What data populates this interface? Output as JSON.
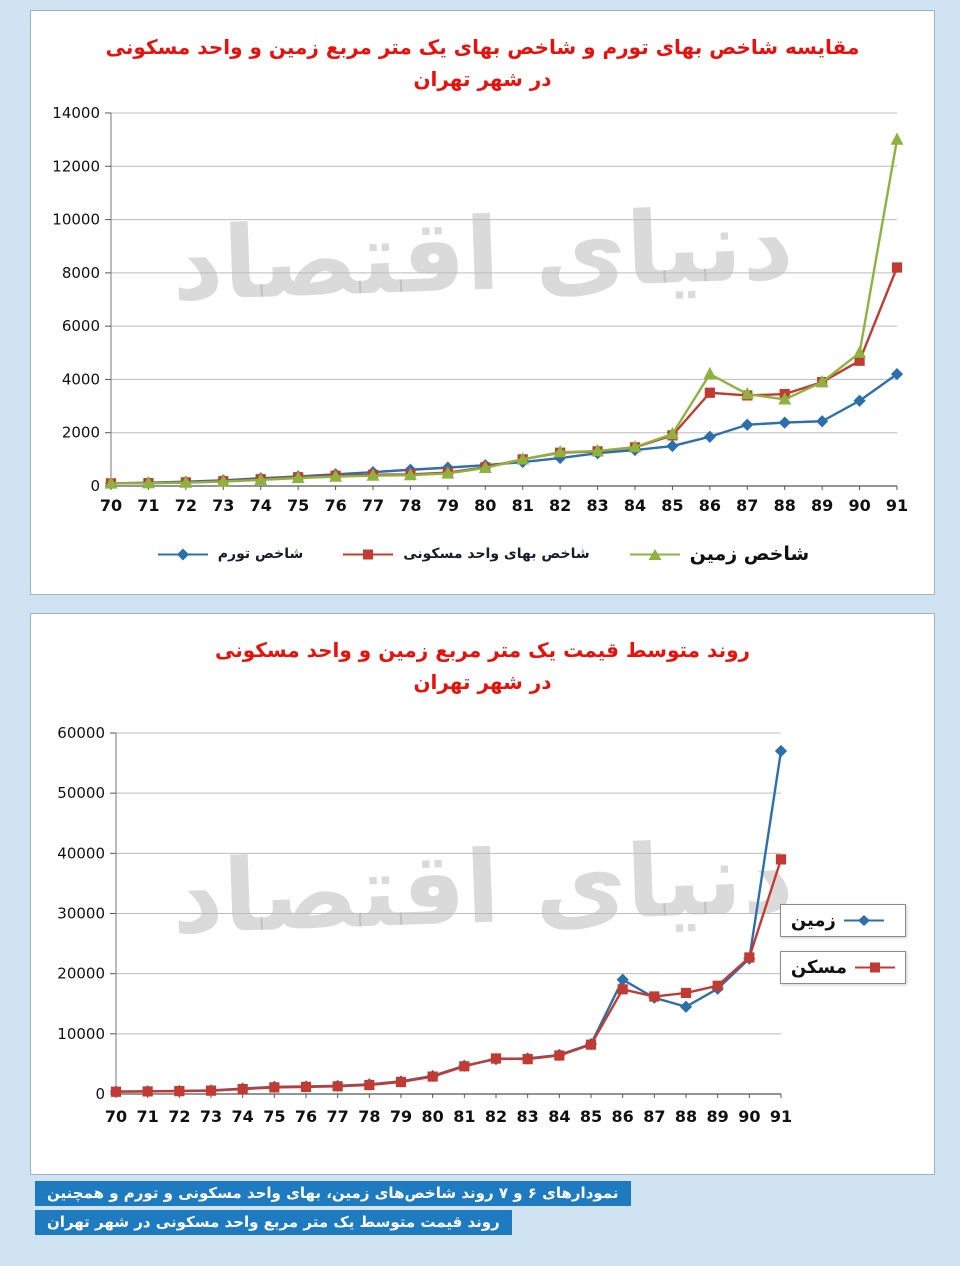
{
  "watermark_text": "دنیای اقتصاد",
  "caption": {
    "line1": "نمودارهای ۶ و ۷ روند شاخص‌های زمین، بهای واحد مسکونی و تورم و همچنین",
    "line2": "روند قیمت متوسط یک متر مربع واحد مسکونی در شهر تهران",
    "background": "#1e7bc0"
  },
  "chart_data": [
    {
      "type": "line",
      "title_line1": "مقایسه شاخص بهای تورم و شاخص بهای یک متر مربع زمین و واحد مسکونی",
      "title_line2": "در شهر تهران",
      "title_color": "#e8110b",
      "categories": [
        "70",
        "71",
        "72",
        "73",
        "74",
        "75",
        "76",
        "77",
        "78",
        "79",
        "80",
        "81",
        "82",
        "83",
        "84",
        "85",
        "86",
        "87",
        "88",
        "89",
        "90",
        "91"
      ],
      "ylim": [
        0,
        14000
      ],
      "yticks": [
        0,
        2000,
        4000,
        6000,
        8000,
        10000,
        12000,
        14000
      ],
      "grid": true,
      "legend_position": "bottom",
      "series": [
        {
          "name": "شاخص تورم",
          "color": "#2c6fad",
          "marker": "diamond",
          "values": [
            100,
            125,
            160,
            215,
            290,
            360,
            440,
            520,
            610,
            690,
            780,
            900,
            1050,
            1230,
            1350,
            1500,
            1850,
            2300,
            2380,
            2430,
            3200,
            4200
          ]
        },
        {
          "name": "شاخص بهای واحد مسکونی",
          "color": "#c23b33",
          "marker": "square",
          "values": [
            100,
            110,
            135,
            180,
            255,
            330,
            385,
            420,
            435,
            505,
            700,
            1000,
            1250,
            1300,
            1450,
            1900,
            3500,
            3400,
            3450,
            3900,
            4700,
            8200
          ]
        },
        {
          "name": "شاخص زمین",
          "color": "#8db33f",
          "marker": "triangle",
          "values": [
            95,
            105,
            125,
            165,
            230,
            300,
            350,
            390,
            405,
            470,
            680,
            1000,
            1270,
            1310,
            1460,
            1950,
            4200,
            3450,
            3250,
            3900,
            5000,
            13000
          ]
        }
      ]
    },
    {
      "type": "line",
      "title_line1": "روند متوسط قیمت یک متر مربع زمین و واحد مسکونی",
      "title_line2": "در شهر تهران",
      "title_color": "#e8110b",
      "categories": [
        "70",
        "71",
        "72",
        "73",
        "74",
        "75",
        "76",
        "77",
        "78",
        "79",
        "80",
        "81",
        "82",
        "83",
        "84",
        "85",
        "86",
        "87",
        "88",
        "89",
        "90",
        "91"
      ],
      "ylim": [
        0,
        60000
      ],
      "yticks": [
        0,
        10000,
        20000,
        30000,
        40000,
        50000,
        60000
      ],
      "grid": true,
      "legend_position": "right",
      "series": [
        {
          "name": "زمین",
          "color": "#2c6fad",
          "marker": "diamond",
          "values": [
            400,
            450,
            500,
            600,
            900,
            1200,
            1250,
            1350,
            1600,
            2100,
            3000,
            4700,
            5800,
            5900,
            6500,
            8300,
            19000,
            16000,
            14500,
            17500,
            22500,
            57000
          ]
        },
        {
          "name": "مسکن",
          "color": "#c23b33",
          "marker": "square",
          "values": [
            380,
            430,
            480,
            560,
            820,
            1100,
            1180,
            1280,
            1500,
            2000,
            2900,
            4600,
            5900,
            5800,
            6400,
            8200,
            17400,
            16200,
            16800,
            18000,
            22700,
            39000
          ]
        }
      ]
    }
  ]
}
